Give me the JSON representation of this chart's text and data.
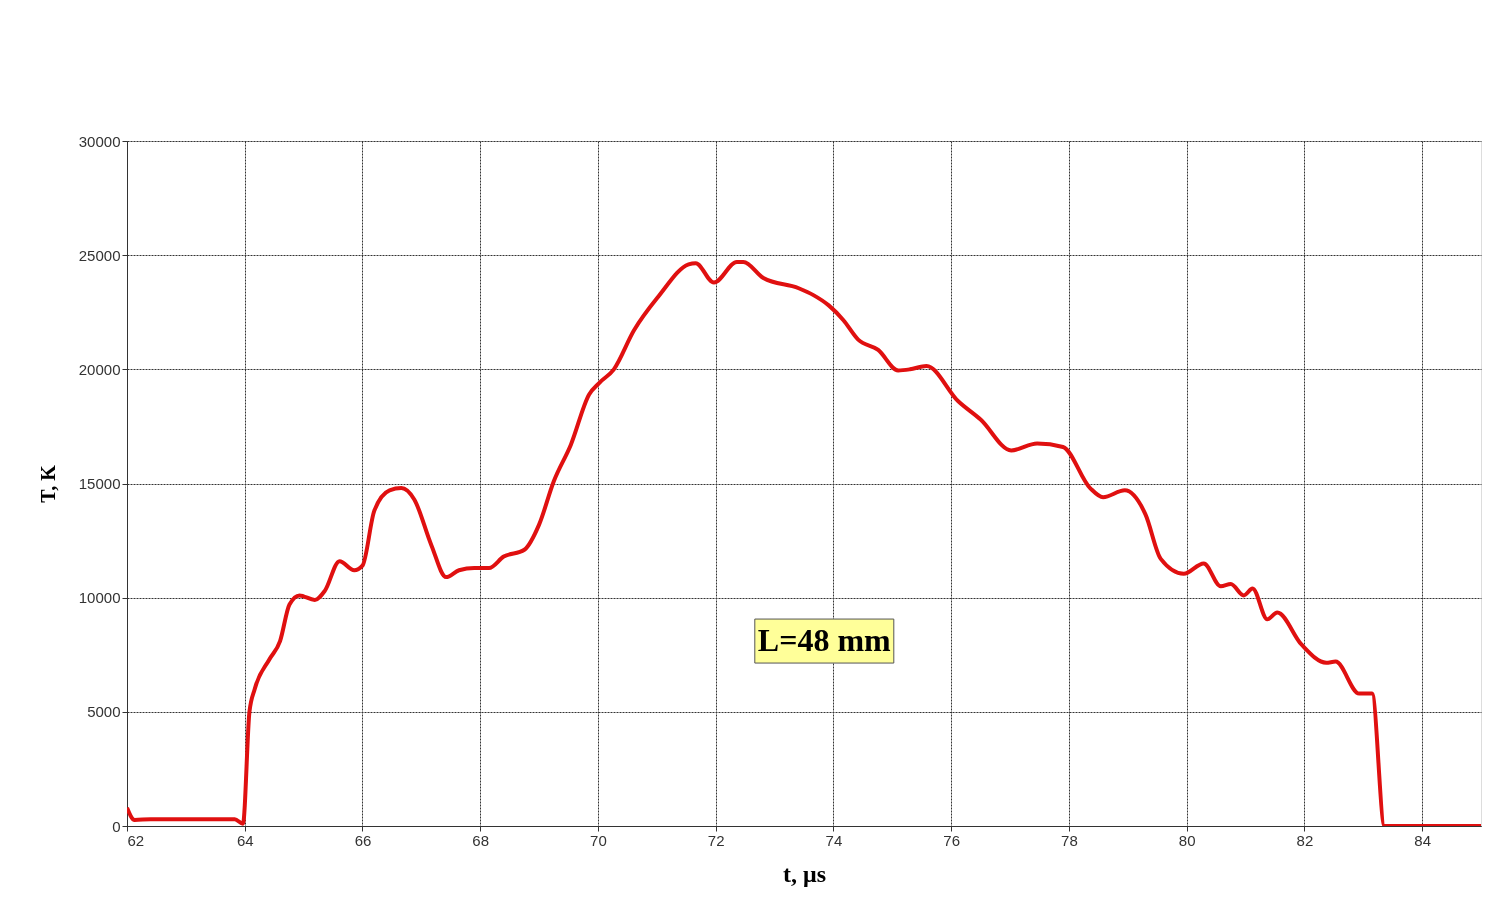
{
  "chart_data": {
    "type": "line",
    "xlabel": "t, μs",
    "ylabel": "T, K",
    "annotations": [
      "L=48 mm"
    ],
    "xlim": [
      62,
      85
    ],
    "xticks": [
      62,
      64,
      66,
      68,
      70,
      72,
      74,
      76,
      78,
      80,
      82,
      84
    ],
    "ylim": [
      0,
      30000
    ],
    "yticks": [
      0,
      5000,
      10000,
      15000,
      20000,
      25000,
      30000
    ],
    "grid": true,
    "series": [
      {
        "color": "#e01010",
        "x": [
          62.0,
          62.13,
          62.4,
          63.83,
          63.97,
          64.08,
          64.17,
          64.42,
          64.6,
          64.76,
          64.93,
          65.19,
          65.36,
          65.61,
          65.86,
          66.0,
          66.2,
          66.46,
          66.66,
          66.88,
          67.17,
          67.42,
          67.64,
          67.9,
          68.15,
          68.4,
          68.75,
          69.0,
          69.25,
          69.54,
          69.85,
          70.02,
          70.27,
          70.61,
          71.03,
          71.54,
          71.66,
          71.97,
          72.36,
          72.47,
          72.81,
          73.41,
          73.66,
          73.92,
          74.17,
          74.42,
          74.76,
          75.1,
          75.3,
          75.58,
          76.12,
          76.5,
          77.02,
          77.46,
          77.9,
          78.36,
          78.58,
          78.95,
          79.3,
          79.56,
          79.95,
          80.29,
          80.58,
          80.75,
          80.97,
          81.12,
          81.37,
          81.54,
          81.95,
          82.37,
          82.53,
          82.93,
          83.15,
          83.36,
          85.0
        ],
        "values": [
          800,
          260,
          300,
          300,
          100,
          5000,
          6000,
          7300,
          8100,
          9700,
          10100,
          9900,
          10300,
          11600,
          11200,
          11400,
          13800,
          14700,
          14800,
          14300,
          12300,
          10900,
          11200,
          11300,
          11300,
          11800,
          12100,
          13200,
          15100,
          16700,
          18900,
          19400,
          20000,
          21700,
          23200,
          24600,
          24650,
          23800,
          24700,
          24700,
          24000,
          23550,
          23250,
          22800,
          22150,
          21300,
          20850,
          19950,
          20000,
          20150,
          18600,
          17800,
          16450,
          16750,
          16600,
          14800,
          14400,
          14700,
          13650,
          11700,
          11050,
          11500,
          10500,
          10600,
          10100,
          10400,
          9050,
          9350,
          7950,
          7150,
          7200,
          5800,
          5800,
          0,
          0
        ]
      }
    ]
  }
}
